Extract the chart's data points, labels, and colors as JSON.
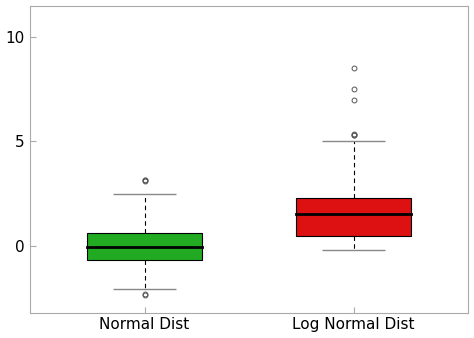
{
  "categories": [
    "Normal Dist",
    "Log Normal Dist"
  ],
  "box_colors": [
    "#22aa22",
    "#dd1111"
  ],
  "normal": {
    "q1": -0.68,
    "median": -0.05,
    "q3": 0.62,
    "whisker_low": -2.05,
    "whisker_high": 2.5,
    "outliers_low": [
      -2.3,
      -2.35
    ],
    "outliers_high": [
      3.1,
      3.13,
      3.16
    ]
  },
  "lognormal": {
    "q1": 0.45,
    "median": 1.5,
    "q3": 2.3,
    "whisker_low": -0.18,
    "whisker_high": 5.0,
    "outliers_low": [],
    "outliers_high": [
      5.28,
      5.32,
      5.36,
      7.0,
      7.5,
      8.5
    ]
  },
  "ylim": [
    -3.2,
    11.5
  ],
  "yticks": [
    0,
    5,
    10
  ],
  "background_color": "#ffffff",
  "box_width": 0.55,
  "whisker_color": "#000000",
  "cap_color": "#888888",
  "flier_color": "#555555",
  "flier_size": 3.5,
  "spine_color": "#aaaaaa"
}
